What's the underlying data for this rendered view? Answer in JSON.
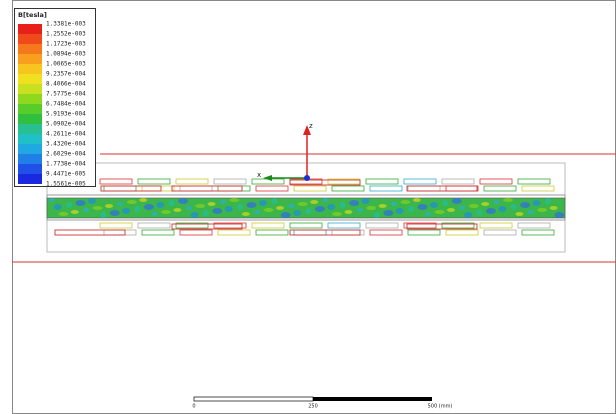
{
  "legend": {
    "title": "B[tesla]",
    "labels": [
      "1.3381e-003",
      "1.2552e-003",
      "1.1723e-003",
      "1.0894e-003",
      "1.0065e-003",
      "9.2357e-004",
      "8.4066e-004",
      "7.5775e-004",
      "6.7484e-004",
      "5.9193e-004",
      "5.0902e-004",
      "4.2611e-004",
      "3.4320e-004",
      "2.6029e-004",
      "1.7738e-004",
      "9.4471e-005",
      "1.5561e-005"
    ]
  },
  "axes": {
    "z": "z",
    "x": "x"
  },
  "scale_bar": {
    "labels": [
      "0",
      "250",
      "500 (mm)"
    ]
  }
}
